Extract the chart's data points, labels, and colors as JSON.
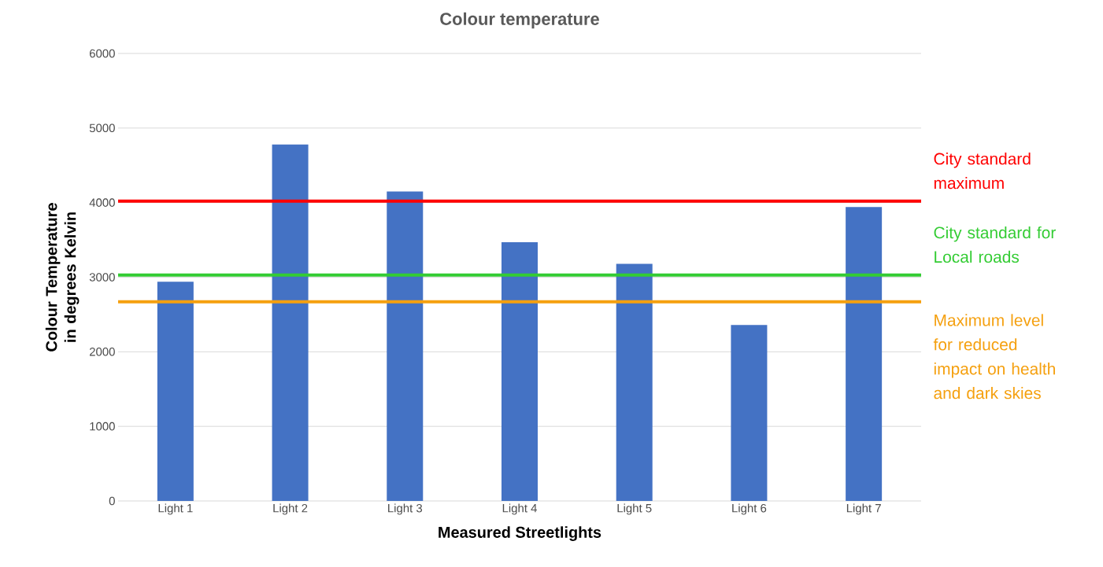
{
  "chart_data": {
    "type": "bar",
    "title": "Colour temperature",
    "xlabel": "Measured Streetlights",
    "ylabel": "Colour Temperature in degrees Kelvin",
    "categories": [
      "Light 1",
      "Light 2",
      "Light 3",
      "Light 4",
      "Light 5",
      "Light 6",
      "Light 7"
    ],
    "values": [
      2940,
      4780,
      4150,
      3470,
      3180,
      2360,
      3940
    ],
    "color": "#4472c4",
    "ylim": [
      0,
      6000
    ],
    "yticks": [
      0,
      1000,
      2000,
      3000,
      4000,
      5000,
      6000
    ],
    "grid": "y",
    "ref_lines": [
      {
        "axis": "y",
        "value": 4020,
        "label": "City standard maximum",
        "color": "#ff0000"
      },
      {
        "axis": "y",
        "value": 3030,
        "label": "City standard for Local roads",
        "color": "#33cc33"
      },
      {
        "axis": "y",
        "value": 2670,
        "label": "Maximum level for reduced impact on health and dark skies",
        "color": "#f5a00f"
      }
    ]
  }
}
